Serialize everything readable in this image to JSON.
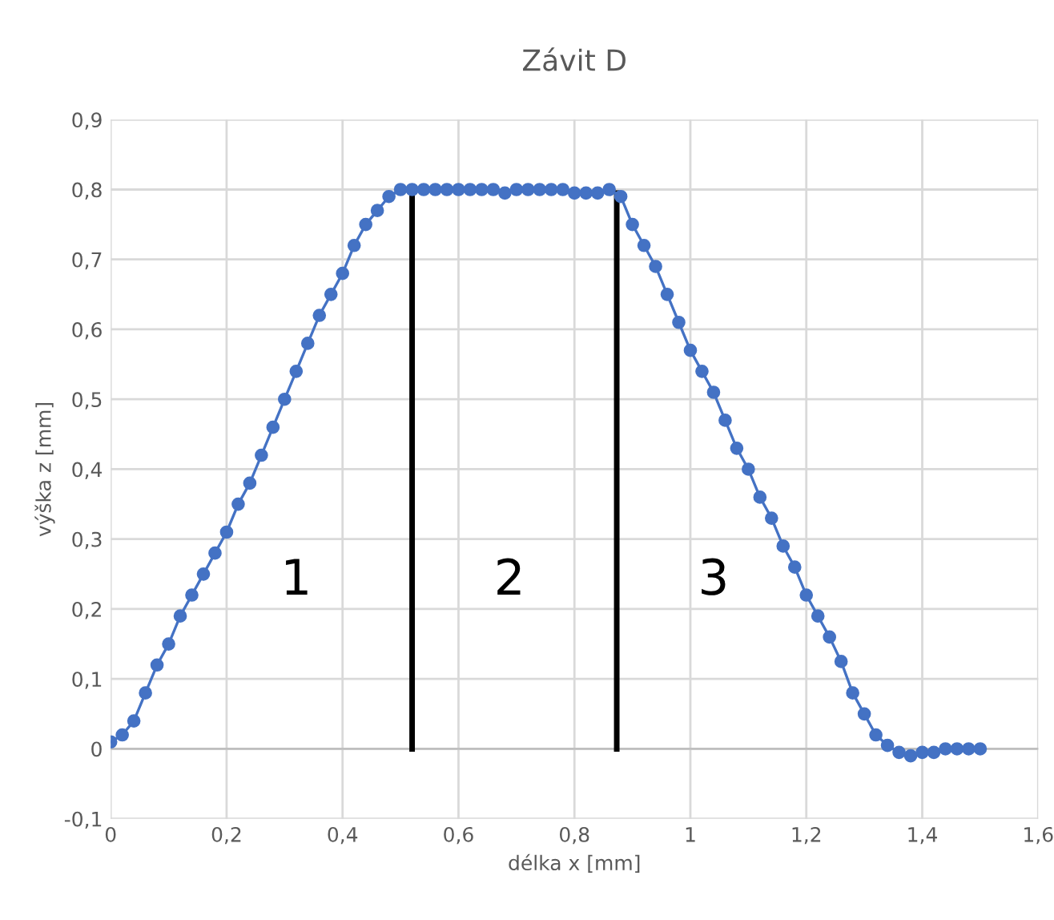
{
  "chart_data": {
    "type": "line",
    "title": "Závit D",
    "xlabel": "délka x [mm]",
    "ylabel": "výška z [mm]",
    "series": [
      {
        "color": "#4472c4",
        "marker": "circle",
        "line_style": "solid",
        "x": [
          0,
          0.02,
          0.04,
          0.06,
          0.08,
          0.1,
          0.12,
          0.14,
          0.16,
          0.18,
          0.2,
          0.22,
          0.24,
          0.26,
          0.28,
          0.3,
          0.32,
          0.34,
          0.36,
          0.38,
          0.4,
          0.42,
          0.44,
          0.46,
          0.48,
          0.5,
          0.52,
          0.54,
          0.56,
          0.58,
          0.6,
          0.62,
          0.64,
          0.66,
          0.68,
          0.7,
          0.72,
          0.74,
          0.76,
          0.78,
          0.8,
          0.82,
          0.84,
          0.86,
          0.88,
          0.9,
          0.92,
          0.94,
          0.96,
          0.98,
          1.0,
          1.02,
          1.04,
          1.06,
          1.08,
          1.1,
          1.12,
          1.14,
          1.16,
          1.18,
          1.2,
          1.22,
          1.24,
          1.26,
          1.28,
          1.3,
          1.32,
          1.34,
          1.36,
          1.38,
          1.4,
          1.42,
          1.44,
          1.46,
          1.48,
          1.5
        ],
        "values": [
          0.01,
          0.02,
          0.04,
          0.08,
          0.12,
          0.15,
          0.19,
          0.22,
          0.25,
          0.28,
          0.31,
          0.35,
          0.38,
          0.42,
          0.46,
          0.5,
          0.54,
          0.58,
          0.62,
          0.65,
          0.68,
          0.72,
          0.75,
          0.77,
          0.79,
          0.8,
          0.8,
          0.8,
          0.8,
          0.8,
          0.8,
          0.8,
          0.8,
          0.8,
          0.795,
          0.8,
          0.8,
          0.8,
          0.8,
          0.8,
          0.795,
          0.795,
          0.795,
          0.8,
          0.79,
          0.75,
          0.72,
          0.69,
          0.65,
          0.61,
          0.57,
          0.54,
          0.51,
          0.47,
          0.43,
          0.4,
          0.36,
          0.33,
          0.29,
          0.26,
          0.22,
          0.19,
          0.16,
          0.125,
          0.08,
          0.05,
          0.02,
          0.005,
          -0.005,
          -0.01,
          -0.005,
          -0.005,
          0,
          0,
          0,
          0
        ]
      },
      {
        "type": "line",
        "color": "#000000",
        "marker": "none",
        "line_style": "solid",
        "x": [
          0.52,
          0.52
        ],
        "values": [
          0,
          0.795
        ]
      },
      {
        "type": "line",
        "color": "#000000",
        "marker": "none",
        "line_style": "solid",
        "x": [
          0.873,
          0.873
        ],
        "values": [
          0,
          0.795
        ]
      }
    ],
    "annotations": [
      "1",
      "2",
      "3"
    ],
    "xlim": [
      0,
      1.6
    ],
    "ylim": [
      -0.1,
      0.9
    ],
    "xticks": [
      0,
      {
        "value": 0.2,
        "label": "0,2"
      },
      {
        "value": 0.4,
        "label": "0,4"
      },
      {
        "value": 0.6,
        "label": "0,6"
      },
      {
        "value": 0.8,
        "label": "0,8"
      },
      1,
      {
        "value": 1.2,
        "label": "1,2"
      },
      {
        "value": 1.4,
        "label": "1,4"
      },
      {
        "value": 1.6,
        "label": "1,6"
      }
    ],
    "yticks": [
      {
        "value": -0.1,
        "label": "-0,1"
      },
      0,
      {
        "value": 0.1,
        "label": "0,1"
      },
      {
        "value": 0.2,
        "label": "0,2"
      },
      {
        "value": 0.3,
        "label": "0,3"
      },
      {
        "value": 0.4,
        "label": "0,4"
      },
      {
        "value": 0.5,
        "label": "0,5"
      },
      {
        "value": 0.6,
        "label": "0,6"
      },
      {
        "value": 0.7,
        "label": "0,7"
      },
      {
        "value": 0.8,
        "label": "0,8"
      },
      {
        "value": 0.9,
        "label": "0,9"
      }
    ],
    "grid": true,
    "legend": false
  }
}
